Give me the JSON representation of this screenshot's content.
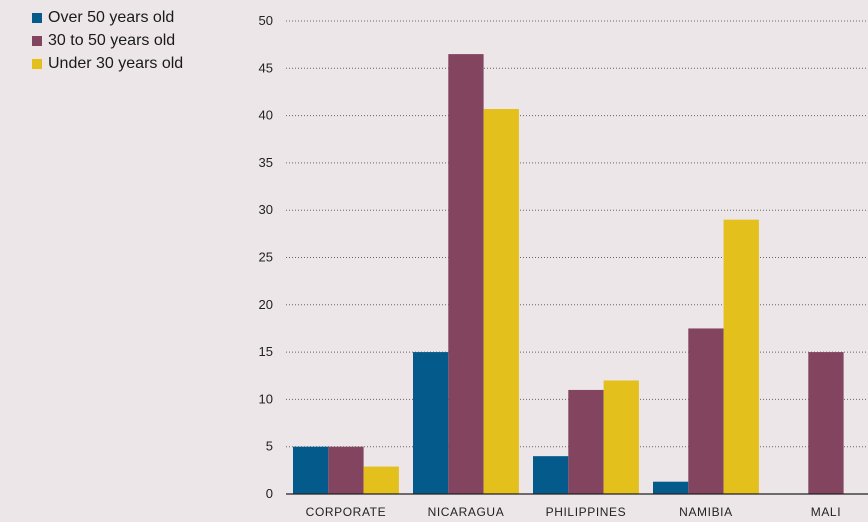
{
  "chart_data": {
    "type": "bar",
    "categories": [
      "CORPORATE",
      "NICARAGUA",
      "PHILIPPINES",
      "NAMIBIA",
      "MALI"
    ],
    "series": [
      {
        "name": "Over 50 years old",
        "color": "#055a8c",
        "values": [
          5,
          15,
          4,
          1.3,
          0
        ]
      },
      {
        "name": "30 to 50 years old",
        "color": "#83445f",
        "values": [
          5,
          46.5,
          11,
          17.5,
          15
        ]
      },
      {
        "name": "Under 30 years old",
        "color": "#e3c01c",
        "values": [
          2.9,
          40.7,
          12,
          29,
          0
        ]
      }
    ],
    "yticks": [
      0,
      5,
      10,
      15,
      20,
      25,
      30,
      35,
      40,
      45,
      50
    ],
    "ylim": [
      0,
      50
    ],
    "grid": true,
    "legend_position": "top-left",
    "title": "",
    "xlabel": "",
    "ylabel": ""
  }
}
